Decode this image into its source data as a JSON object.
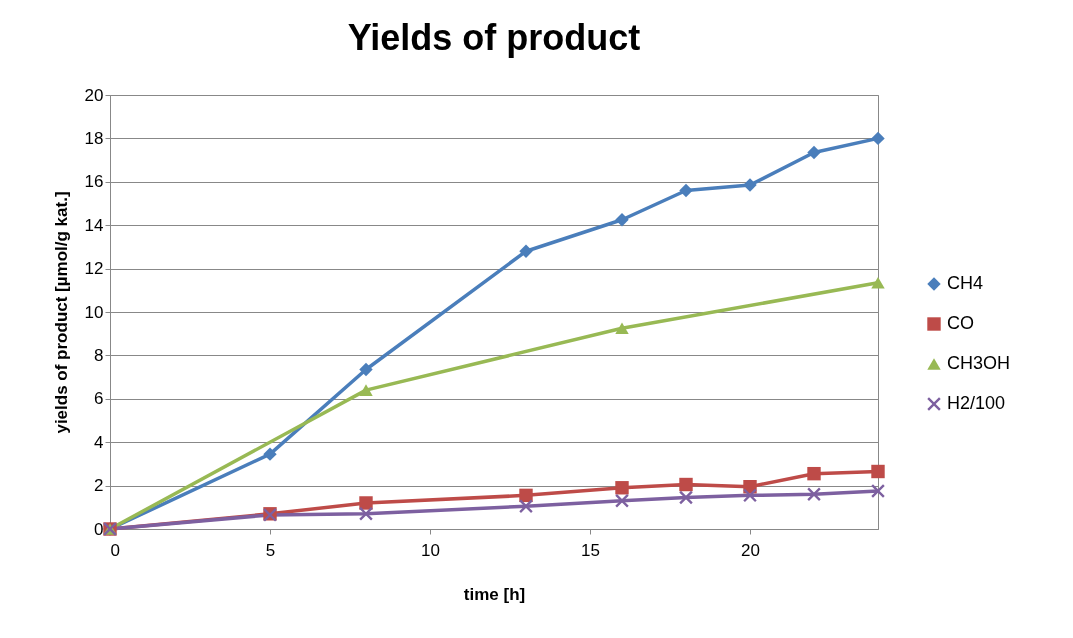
{
  "chart_data": {
    "type": "line",
    "title": "Yields of product",
    "xlabel": "time [h]",
    "ylabel": "yields of product [µmol/g kat.]",
    "xlim": [
      0,
      24
    ],
    "xticks": [
      0,
      5,
      10,
      15,
      20
    ],
    "ylim": [
      0,
      20
    ],
    "yticks": [
      0,
      2,
      4,
      6,
      8,
      10,
      12,
      14,
      16,
      18,
      20
    ],
    "grid": "y",
    "legend": "right",
    "line_style": "solid",
    "series": [
      {
        "name": "CH4",
        "color": "#4a7ebb",
        "marker": "diamond",
        "x": [
          0,
          5,
          8,
          13,
          16,
          18,
          20,
          22,
          24
        ],
        "values": [
          0,
          3.45,
          7.35,
          12.8,
          14.25,
          15.6,
          15.85,
          17.35,
          18.0
        ]
      },
      {
        "name": "CO",
        "color": "#be4b48",
        "marker": "square",
        "x": [
          0,
          5,
          8,
          13,
          16,
          18,
          20,
          22,
          24
        ],
        "values": [
          0,
          0.7,
          1.2,
          1.55,
          1.9,
          2.05,
          1.95,
          2.55,
          2.65
        ]
      },
      {
        "name": "CH3OH",
        "color": "#98b954",
        "marker": "triangle",
        "x": [
          0,
          8,
          16,
          24
        ],
        "values": [
          0,
          6.4,
          9.25,
          11.35
        ]
      },
      {
        "name": "H2/100",
        "color": "#7d60a0",
        "marker": "cross",
        "x": [
          0,
          5,
          8,
          13,
          16,
          18,
          20,
          22,
          24
        ],
        "values": [
          0,
          0.65,
          0.7,
          1.05,
          1.3,
          1.45,
          1.55,
          1.6,
          1.75
        ]
      }
    ]
  }
}
